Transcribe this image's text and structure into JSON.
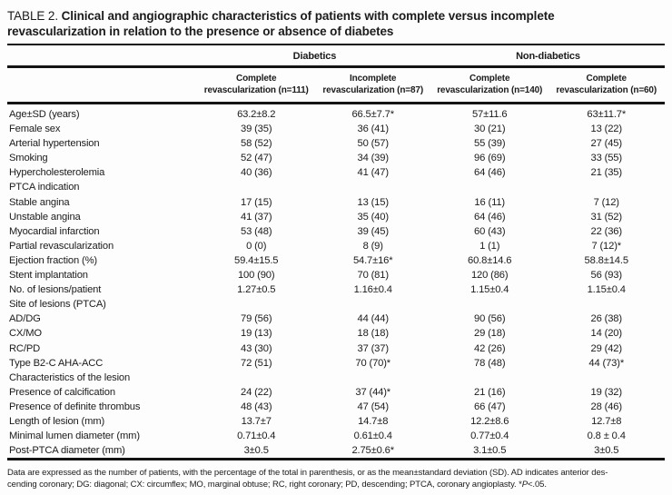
{
  "page": {
    "background": "#fdfdfd",
    "text_color": "#1b1b1b",
    "rule_color": "#141414"
  },
  "title": {
    "label": "TABLE 2.",
    "line1": "Clinical and angiographic characteristics of patients with complete versus incomplete",
    "line2": "revascularization in relation to the presence or absence of diabetes"
  },
  "table": {
    "group_headers": [
      {
        "label": "Diabetics"
      },
      {
        "label": "Non-diabetics"
      }
    ],
    "col_headers": [
      {
        "line1": "Complete",
        "line2": "revascularization (n=111)"
      },
      {
        "line1": "Incomplete",
        "line2": "revascularization (n=87)"
      },
      {
        "line1": "Complete",
        "line2": "revascularization (n=140)"
      },
      {
        "line1": "Complete",
        "line2": "revascularization (n=60)"
      }
    ],
    "rows": [
      {
        "label": "Age±SD (years)",
        "values": [
          "63.2±8.2",
          "66.5±7.7*",
          "57±11.6",
          "63±11.7*"
        ]
      },
      {
        "label": "Female sex",
        "values": [
          "39 (35)",
          "36 (41)",
          "30 (21)",
          "13 (22)"
        ]
      },
      {
        "label": "Arterial hypertension",
        "values": [
          "58 (52)",
          "50 (57)",
          "55 (39)",
          "27 (45)"
        ]
      },
      {
        "label": "Smoking",
        "values": [
          "52 (47)",
          "34 (39)",
          "96 (69)",
          "33 (55)"
        ]
      },
      {
        "label": "Hypercholesterolemia",
        "values": [
          "40 (36)",
          "41 (47)",
          "64 (46)",
          "21 (35)"
        ]
      },
      {
        "label": "PTCA indication",
        "values": [
          "",
          "",
          "",
          ""
        ]
      },
      {
        "label": "Stable angina",
        "values": [
          "17 (15)",
          "13 (15)",
          "16 (11)",
          "7 (12)"
        ]
      },
      {
        "label": "Unstable angina",
        "values": [
          "41 (37)",
          "35 (40)",
          "64 (46)",
          "31 (52)"
        ]
      },
      {
        "label": "Myocardial infarction",
        "values": [
          "53 (48)",
          "39 (45)",
          "60 (43)",
          "22 (36)"
        ]
      },
      {
        "label": "Partial revascularization",
        "values": [
          "0 (0)",
          "8 (9)",
          "1 (1)",
          "7 (12)*"
        ]
      },
      {
        "label": "Ejection fraction (%)",
        "values": [
          "59.4±15.5",
          "54.7±16*",
          "60.8±14.6",
          "58.8±14.5"
        ]
      },
      {
        "label": "Stent implantation",
        "values": [
          "100 (90)",
          "70 (81)",
          "120 (86)",
          "56 (93)"
        ]
      },
      {
        "label": "No. of lesions/patient",
        "values": [
          "1.27±0.5",
          "1.16±0.4",
          "1.15±0.4",
          "1.15±0.4"
        ]
      },
      {
        "label": "Site of lesions (PTCA)",
        "values": [
          "",
          "",
          "",
          ""
        ]
      },
      {
        "label": "AD/DG",
        "values": [
          "79 (56)",
          "44 (44)",
          "90 (56)",
          "26 (38)"
        ]
      },
      {
        "label": "CX/MO",
        "values": [
          "19 (13)",
          "18 (18)",
          "29 (18)",
          "14 (20)"
        ]
      },
      {
        "label": "RC/PD",
        "values": [
          "43 (30)",
          "37 (37)",
          "42 (26)",
          "29 (42)"
        ]
      },
      {
        "label": "Type B2-C AHA-ACC",
        "values": [
          "72 (51)",
          "70 (70)*",
          "78 (48)",
          "44 (73)*"
        ]
      },
      {
        "label": "Characteristics of the lesion",
        "values": [
          "",
          "",
          "",
          ""
        ]
      },
      {
        "label": "Presence of calcification",
        "values": [
          "24 (22)",
          "37 (44)*",
          "21 (16)",
          "19 (32)"
        ]
      },
      {
        "label": "Presence of definite thrombus",
        "values": [
          "48 (43)",
          "47 (54)",
          "66 (47)",
          "28 (46)"
        ]
      },
      {
        "label": "Length of lesion (mm)",
        "values": [
          "13.7±7",
          "14.7±8",
          "12.2±8.6",
          "12.7±8"
        ]
      },
      {
        "label": "Minimal lumen diameter (mm)",
        "values": [
          "0.71±0.4",
          "0.61±0.4",
          "0.77±0.4",
          "0.8 ± 0.4"
        ]
      },
      {
        "label": "Post-PTCA diameter (mm)",
        "values": [
          "3±0.5",
          "2.75±0.6*",
          "3.1±0.5",
          "3±0.5"
        ]
      }
    ]
  },
  "footnote": {
    "line1": "Data are expressed as the number of patients, with the percentage of the total in parenthesis, or as the mean±standard deviation (SD). AD indicates anterior des-",
    "line2_pre": "cending coronary; DG: diagonal; CX: circumflex; MO, marginal obtuse; RC, right coronary; PD, descending; PTCA, coronary angioplasty. *",
    "p_italic": "P",
    "line2_post": "<.05."
  }
}
